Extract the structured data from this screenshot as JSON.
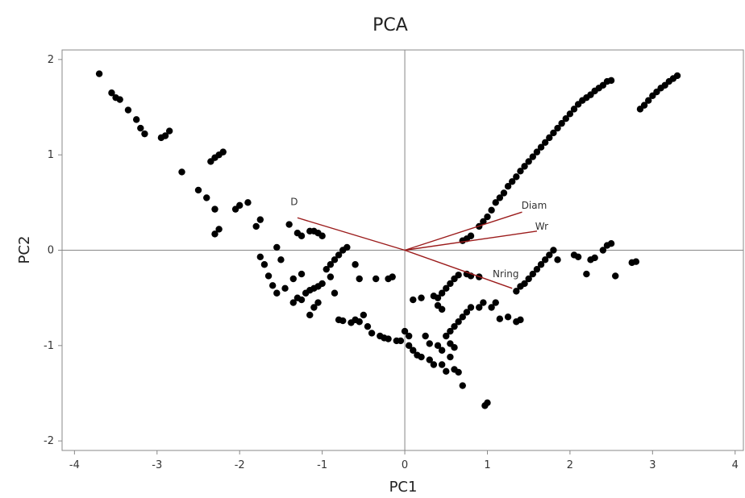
{
  "chart_data": {
    "type": "scatter",
    "title": "PCA",
    "xlabel": "PC1",
    "ylabel": "PC2",
    "xlim": [
      -4.15,
      4.1
    ],
    "ylim": [
      -2.1,
      2.1
    ],
    "xticks": [
      -4,
      -3,
      -2,
      -1,
      0,
      1,
      2,
      3,
      4
    ],
    "yticks": [
      -2,
      -1,
      0,
      1,
      2
    ],
    "reference_lines": {
      "x": 0,
      "y": 0
    },
    "grid": false,
    "legend": "none",
    "point_color": "#000000",
    "vector_color": "#9b1b1b",
    "loadings": [
      {
        "label": "D",
        "x": -1.3,
        "y": 0.34
      },
      {
        "label": "Diam",
        "x": 1.42,
        "y": 0.4
      },
      {
        "label": "Wr",
        "x": 1.6,
        "y": 0.2
      },
      {
        "label": "Nring",
        "x": 1.3,
        "y": -0.4
      }
    ],
    "points": [
      [
        -3.7,
        1.85
      ],
      [
        -3.55,
        1.65
      ],
      [
        -3.5,
        1.6
      ],
      [
        -3.45,
        1.58
      ],
      [
        -3.35,
        1.47
      ],
      [
        -3.25,
        1.37
      ],
      [
        -3.2,
        1.28
      ],
      [
        -3.15,
        1.22
      ],
      [
        -2.95,
        1.18
      ],
      [
        -2.9,
        1.2
      ],
      [
        -2.85,
        1.25
      ],
      [
        -2.7,
        0.82
      ],
      [
        -2.35,
        0.93
      ],
      [
        -2.3,
        0.97
      ],
      [
        -2.25,
        1.0
      ],
      [
        -2.2,
        1.03
      ],
      [
        -2.5,
        0.63
      ],
      [
        -2.4,
        0.55
      ],
      [
        -2.3,
        0.43
      ],
      [
        -2.05,
        0.43
      ],
      [
        -2.0,
        0.47
      ],
      [
        -1.9,
        0.5
      ],
      [
        -2.25,
        0.22
      ],
      [
        -2.3,
        0.17
      ],
      [
        -1.75,
        0.32
      ],
      [
        -1.8,
        0.25
      ],
      [
        -1.55,
        0.03
      ],
      [
        -1.5,
        -0.1
      ],
      [
        -1.4,
        0.27
      ],
      [
        -1.3,
        0.18
      ],
      [
        -1.25,
        0.15
      ],
      [
        -1.15,
        0.2
      ],
      [
        -1.1,
        0.2
      ],
      [
        -1.05,
        0.18
      ],
      [
        -1.0,
        0.15
      ],
      [
        -1.75,
        -0.07
      ],
      [
        -1.7,
        -0.15
      ],
      [
        -1.65,
        -0.27
      ],
      [
        -1.6,
        -0.37
      ],
      [
        -1.55,
        -0.45
      ],
      [
        -1.45,
        -0.4
      ],
      [
        -1.35,
        -0.3
      ],
      [
        -1.25,
        -0.25
      ],
      [
        -1.35,
        -0.55
      ],
      [
        -1.3,
        -0.5
      ],
      [
        -1.25,
        -0.52
      ],
      [
        -1.2,
        -0.45
      ],
      [
        -1.15,
        -0.42
      ],
      [
        -1.1,
        -0.4
      ],
      [
        -1.05,
        -0.38
      ],
      [
        -1.0,
        -0.35
      ],
      [
        -1.15,
        -0.68
      ],
      [
        -1.1,
        -0.6
      ],
      [
        -1.05,
        -0.55
      ],
      [
        -0.95,
        -0.2
      ],
      [
        -0.9,
        -0.15
      ],
      [
        -0.85,
        -0.1
      ],
      [
        -0.8,
        -0.05
      ],
      [
        -0.75,
        0.0
      ],
      [
        -0.7,
        0.03
      ],
      [
        -0.9,
        -0.28
      ],
      [
        -0.85,
        -0.45
      ],
      [
        -0.8,
        -0.73
      ],
      [
        -0.75,
        -0.74
      ],
      [
        -0.65,
        -0.76
      ],
      [
        -0.6,
        -0.73
      ],
      [
        -0.55,
        -0.75
      ],
      [
        -0.5,
        -0.68
      ],
      [
        -0.45,
        -0.8
      ],
      [
        -0.4,
        -0.87
      ],
      [
        -0.3,
        -0.9
      ],
      [
        -0.25,
        -0.92
      ],
      [
        -0.2,
        -0.93
      ],
      [
        -0.1,
        -0.95
      ],
      [
        -0.6,
        -0.15
      ],
      [
        -0.55,
        -0.3
      ],
      [
        -0.35,
        -0.3
      ],
      [
        -0.2,
        -0.3
      ],
      [
        -0.15,
        -0.28
      ],
      [
        -0.05,
        -0.95
      ],
      [
        0.0,
        -0.85
      ],
      [
        0.05,
        -0.9
      ],
      [
        0.1,
        -1.05
      ],
      [
        0.15,
        -1.1
      ],
      [
        0.2,
        -1.12
      ],
      [
        0.05,
        -1.0
      ],
      [
        0.3,
        -1.15
      ],
      [
        0.35,
        -1.2
      ],
      [
        0.45,
        -1.2
      ],
      [
        0.5,
        -1.27
      ],
      [
        0.55,
        -1.12
      ],
      [
        0.6,
        -1.25
      ],
      [
        0.65,
        -1.28
      ],
      [
        0.7,
        -1.42
      ],
      [
        0.1,
        -0.52
      ],
      [
        0.2,
        -0.5
      ],
      [
        0.35,
        -0.48
      ],
      [
        0.4,
        -0.5
      ],
      [
        0.45,
        -0.45
      ],
      [
        0.5,
        -0.4
      ],
      [
        0.55,
        -0.35
      ],
      [
        0.6,
        -0.3
      ],
      [
        0.65,
        -0.26
      ],
      [
        0.75,
        -0.25
      ],
      [
        0.8,
        -0.27
      ],
      [
        0.9,
        -0.28
      ],
      [
        0.4,
        -0.58
      ],
      [
        0.45,
        -0.62
      ],
      [
        0.5,
        -0.9
      ],
      [
        0.55,
        -0.85
      ],
      [
        0.6,
        -0.8
      ],
      [
        0.65,
        -0.75
      ],
      [
        0.7,
        -0.7
      ],
      [
        0.75,
        -0.65
      ],
      [
        0.8,
        -0.6
      ],
      [
        0.9,
        -0.6
      ],
      [
        0.95,
        -0.55
      ],
      [
        1.05,
        -0.6
      ],
      [
        1.1,
        -0.55
      ],
      [
        1.15,
        -0.72
      ],
      [
        1.25,
        -0.7
      ],
      [
        1.35,
        -0.75
      ],
      [
        1.4,
        -0.73
      ],
      [
        0.97,
        -1.63
      ],
      [
        1.0,
        -1.6
      ],
      [
        0.25,
        -0.9
      ],
      [
        0.3,
        -0.98
      ],
      [
        0.4,
        -1.0
      ],
      [
        0.45,
        -1.05
      ],
      [
        0.55,
        -0.98
      ],
      [
        0.6,
        -1.02
      ],
      [
        1.35,
        -0.43
      ],
      [
        1.4,
        -0.38
      ],
      [
        1.45,
        -0.35
      ],
      [
        1.5,
        -0.3
      ],
      [
        1.55,
        -0.25
      ],
      [
        1.6,
        -0.2
      ],
      [
        1.65,
        -0.15
      ],
      [
        1.7,
        -0.1
      ],
      [
        1.75,
        -0.05
      ],
      [
        1.8,
        0.0
      ],
      [
        1.85,
        -0.1
      ],
      [
        2.05,
        -0.05
      ],
      [
        2.1,
        -0.07
      ],
      [
        2.2,
        -0.25
      ],
      [
        2.25,
        -0.1
      ],
      [
        2.3,
        -0.08
      ],
      [
        2.4,
        0.0
      ],
      [
        2.45,
        0.05
      ],
      [
        2.5,
        0.07
      ],
      [
        2.55,
        -0.27
      ],
      [
        2.75,
        -0.13
      ],
      [
        2.8,
        -0.12
      ],
      [
        0.7,
        0.1
      ],
      [
        0.75,
        0.12
      ],
      [
        0.8,
        0.15
      ],
      [
        0.9,
        0.25
      ],
      [
        0.95,
        0.3
      ],
      [
        1.0,
        0.35
      ],
      [
        1.05,
        0.42
      ],
      [
        1.1,
        0.5
      ],
      [
        1.15,
        0.55
      ],
      [
        1.2,
        0.6
      ],
      [
        1.25,
        0.67
      ],
      [
        1.3,
        0.72
      ],
      [
        1.35,
        0.77
      ],
      [
        1.4,
        0.83
      ],
      [
        1.45,
        0.88
      ],
      [
        1.5,
        0.93
      ],
      [
        1.55,
        0.98
      ],
      [
        1.6,
        1.03
      ],
      [
        1.65,
        1.08
      ],
      [
        1.7,
        1.13
      ],
      [
        1.75,
        1.18
      ],
      [
        1.8,
        1.23
      ],
      [
        1.85,
        1.28
      ],
      [
        1.9,
        1.33
      ],
      [
        1.95,
        1.38
      ],
      [
        2.0,
        1.43
      ],
      [
        2.05,
        1.48
      ],
      [
        2.1,
        1.53
      ],
      [
        2.15,
        1.57
      ],
      [
        2.2,
        1.6
      ],
      [
        2.25,
        1.63
      ],
      [
        2.3,
        1.67
      ],
      [
        2.35,
        1.7
      ],
      [
        2.4,
        1.73
      ],
      [
        2.45,
        1.77
      ],
      [
        2.5,
        1.78
      ],
      [
        2.85,
        1.48
      ],
      [
        2.9,
        1.52
      ],
      [
        2.95,
        1.57
      ],
      [
        3.0,
        1.62
      ],
      [
        3.05,
        1.66
      ],
      [
        3.1,
        1.7
      ],
      [
        3.15,
        1.73
      ],
      [
        3.2,
        1.77
      ],
      [
        3.25,
        1.8
      ],
      [
        3.3,
        1.83
      ]
    ]
  }
}
